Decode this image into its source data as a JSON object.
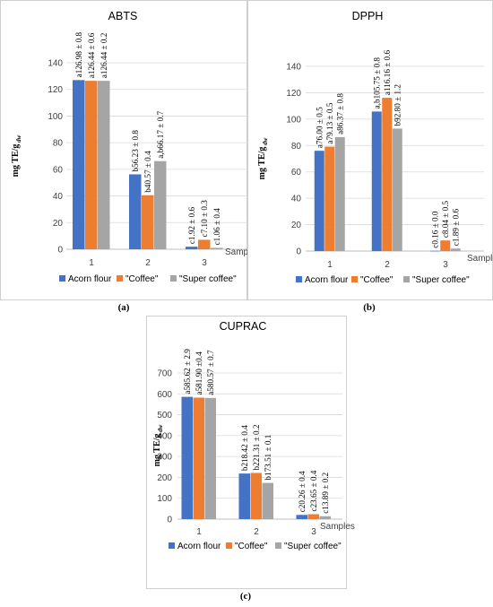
{
  "colors": {
    "series": [
      "#4472c4",
      "#ed7d31",
      "#a5a5a5"
    ],
    "grid": "#d9d9d9",
    "axis": "#bfbfbf",
    "frame": "#cfcfcf"
  },
  "chart_data": [
    {
      "type": "bar",
      "title": "ABTS",
      "caption": "(a)",
      "ylabel": "mg TE/g",
      "ylabel_sub": "dw",
      "xlabel": "Samples",
      "categories": [
        "1",
        "2",
        "3"
      ],
      "ylim": [
        0,
        140
      ],
      "yticks": [
        0,
        20,
        40,
        60,
        80,
        100,
        120,
        140
      ],
      "grid": true,
      "legend": "bottom",
      "series": [
        {
          "name": "Acorn flour",
          "values": [
            126.98,
            56.23,
            1.92
          ],
          "labels": [
            "a126.98 ± 0.8",
            "b56.23 ± 0.8",
            "c1.92 ± 0.6"
          ]
        },
        {
          "name": "\"Coffee\"",
          "values": [
            126.44,
            40.57,
            7.1
          ],
          "labels": [
            "a126.44 ± 0.6",
            "b40.57 ± 0.4",
            "c7.10 ± 0.3"
          ]
        },
        {
          "name": "\"Super coffee\"",
          "values": [
            126.44,
            66.17,
            1.06
          ],
          "labels": [
            "a126.44 ± 0.2",
            "a,b66.17 ± 0.7",
            "c1.06 ± 0.4"
          ]
        }
      ]
    },
    {
      "type": "bar",
      "title": "DPPH",
      "caption": "(b)",
      "ylabel": "mg TE/g",
      "ylabel_sub": "dw",
      "xlabel": "Samples",
      "categories": [
        "1",
        "2",
        "3"
      ],
      "ylim": [
        0,
        140
      ],
      "yticks": [
        0,
        20,
        40,
        60,
        80,
        100,
        120,
        140
      ],
      "grid": true,
      "legend": "bottom",
      "series": [
        {
          "name": "Acorn flour",
          "values": [
            76.0,
            105.75,
            0.16
          ],
          "labels": [
            "a76.00 ± 0.5",
            "a,b105.75 ± 0.8",
            "c0.16 ± 0.0"
          ]
        },
        {
          "name": "\"Coffee\"",
          "values": [
            79.13,
            116.16,
            8.04
          ],
          "labels": [
            "a79.13 ± 0.5",
            "a116.16 ± 0.6",
            "c8.04 ± 0.5"
          ]
        },
        {
          "name": "\"Super coffee\"",
          "values": [
            86.37,
            92.8,
            1.89
          ],
          "labels": [
            "a86.37 ± 0.8",
            "b92.80 ± 1.2",
            "c1.89 ± 0.6"
          ]
        }
      ]
    },
    {
      "type": "bar",
      "title": "CUPRAC",
      "caption": "(c)",
      "ylabel": "mg TE/g",
      "ylabel_sub": "dw",
      "xlabel": "Samples",
      "categories": [
        "1",
        "2",
        "3"
      ],
      "ylim": [
        0,
        700
      ],
      "yticks": [
        0,
        100,
        200,
        300,
        400,
        500,
        600,
        700
      ],
      "grid": true,
      "legend": "bottom",
      "series": [
        {
          "name": "Acorn flour",
          "values": [
            585.62,
            218.42,
            20.26
          ],
          "labels": [
            "a585.62 ± 2.9",
            "b218.42 ± 0.4",
            "c20.26 ± 0.4"
          ]
        },
        {
          "name": "\"Coffee\"",
          "values": [
            581.9,
            221.31,
            23.65
          ],
          "labels": [
            "a581.90 ±0.4",
            "b221.31 ± 0.2",
            "c23.65 ± 0.4"
          ]
        },
        {
          "name": "\"Super coffee\"",
          "values": [
            580.57,
            173.51,
            13.89
          ],
          "labels": [
            "a580.57 ± 0.7",
            "b173.51 ± 0.1",
            "c13.89 ± 0.2"
          ]
        }
      ]
    }
  ]
}
